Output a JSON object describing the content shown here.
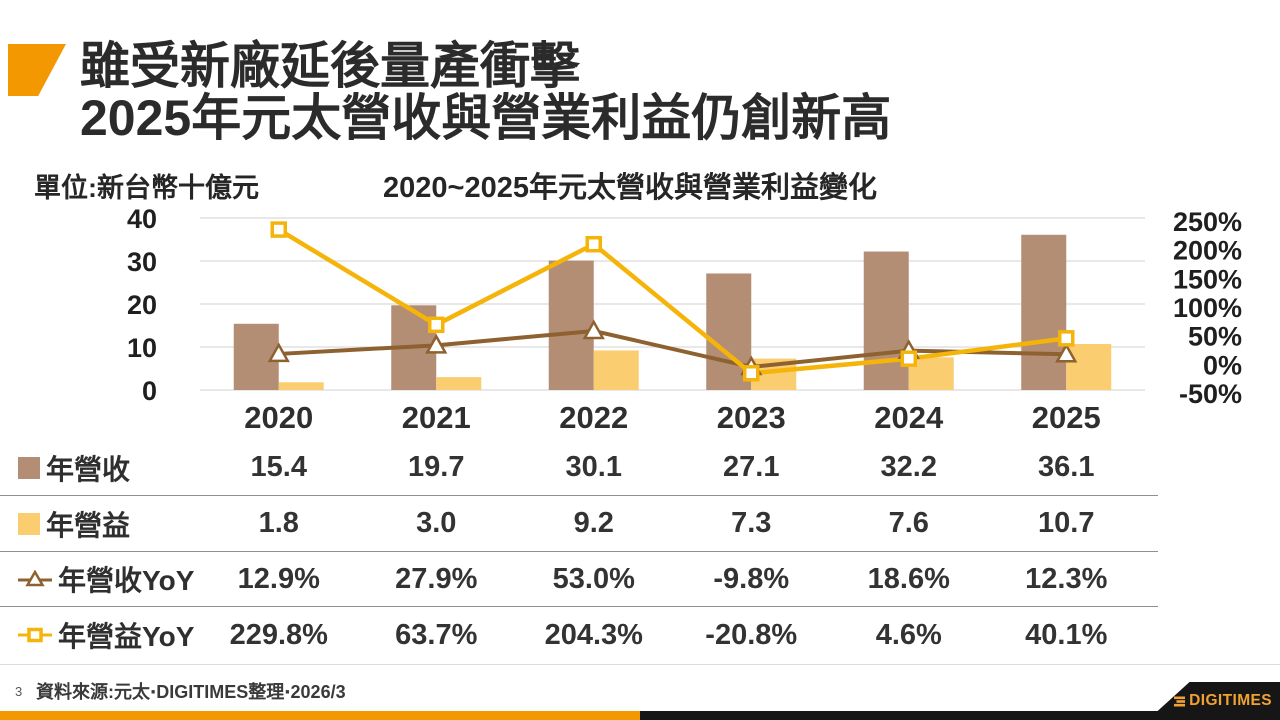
{
  "slide": {
    "title_line1": "雖受新廠延後量產衝擊",
    "title_line2": "2025年元太營收與營業利益仍創新高",
    "unit_label": "單位:新台幣十億元",
    "page_number": "3",
    "source_note": "資料來源:元太‧DIGITIMES整理‧2026/3",
    "logo_text": "DIGITIMES"
  },
  "colors": {
    "accent_orange": "#F39800",
    "bar_revenue": "#B48E74",
    "bar_profit": "#FACD71",
    "line_revenue_yoy": "#8E6130",
    "line_profit_yoy": "#F5B40A",
    "gridline": "#D9D9D9",
    "divider": "#8F8F8F",
    "logo_black": "#161616"
  },
  "chart_data": {
    "type": "bar+line combo",
    "title": "2020~2025年元太營收與營業利益變化",
    "categories": [
      "2020",
      "2021",
      "2022",
      "2023",
      "2024",
      "2025"
    ],
    "series": [
      {
        "name": "年營收",
        "type": "bar",
        "axis": "left",
        "color": "#B48E74",
        "values": [
          15.4,
          19.7,
          30.1,
          27.1,
          32.2,
          36.1
        ]
      },
      {
        "name": "年營益",
        "type": "bar",
        "axis": "left",
        "color": "#FACD71",
        "values": [
          1.8,
          3.0,
          9.2,
          7.3,
          7.6,
          10.7
        ]
      },
      {
        "name": "年營收YoY",
        "type": "line",
        "axis": "right",
        "marker": "triangle",
        "color": "#8E6130",
        "values": [
          12.9,
          27.9,
          53.0,
          -9.8,
          18.6,
          12.3
        ]
      },
      {
        "name": "年營益YoY",
        "type": "line",
        "axis": "right",
        "marker": "square",
        "color": "#F5B40A",
        "values": [
          229.8,
          63.7,
          204.3,
          -20.8,
          4.6,
          40.1
        ]
      }
    ],
    "left_axis": {
      "min": 0,
      "max": 40,
      "ticks": [
        0,
        10,
        20,
        30,
        40
      ],
      "suffix": ""
    },
    "right_axis": {
      "min": -50,
      "max": 250,
      "ticks": [
        -50,
        0,
        50,
        100,
        150,
        200,
        250
      ],
      "suffix": "%"
    },
    "grid": true,
    "legend_position": "left column of data table"
  },
  "table": {
    "rows": [
      {
        "label": "年營收",
        "marker": "brown-bar-swatch",
        "values": [
          "15.4",
          "19.7",
          "30.1",
          "27.1",
          "32.2",
          "36.1"
        ]
      },
      {
        "label": "年營益",
        "marker": "yellow-bar-swatch",
        "values": [
          "1.8",
          "3.0",
          "9.2",
          "7.3",
          "7.6",
          "10.7"
        ]
      },
      {
        "label": "年營收YoY",
        "marker": "brown-line-triangle",
        "values": [
          "12.9%",
          "27.9%",
          "53.0%",
          "-9.8%",
          "18.6%",
          "12.3%"
        ]
      },
      {
        "label": "年營益YoY",
        "marker": "yellow-line-square",
        "values": [
          "229.8%",
          "63.7%",
          "204.3%",
          "-20.8%",
          "4.6%",
          "40.1%"
        ]
      }
    ]
  }
}
